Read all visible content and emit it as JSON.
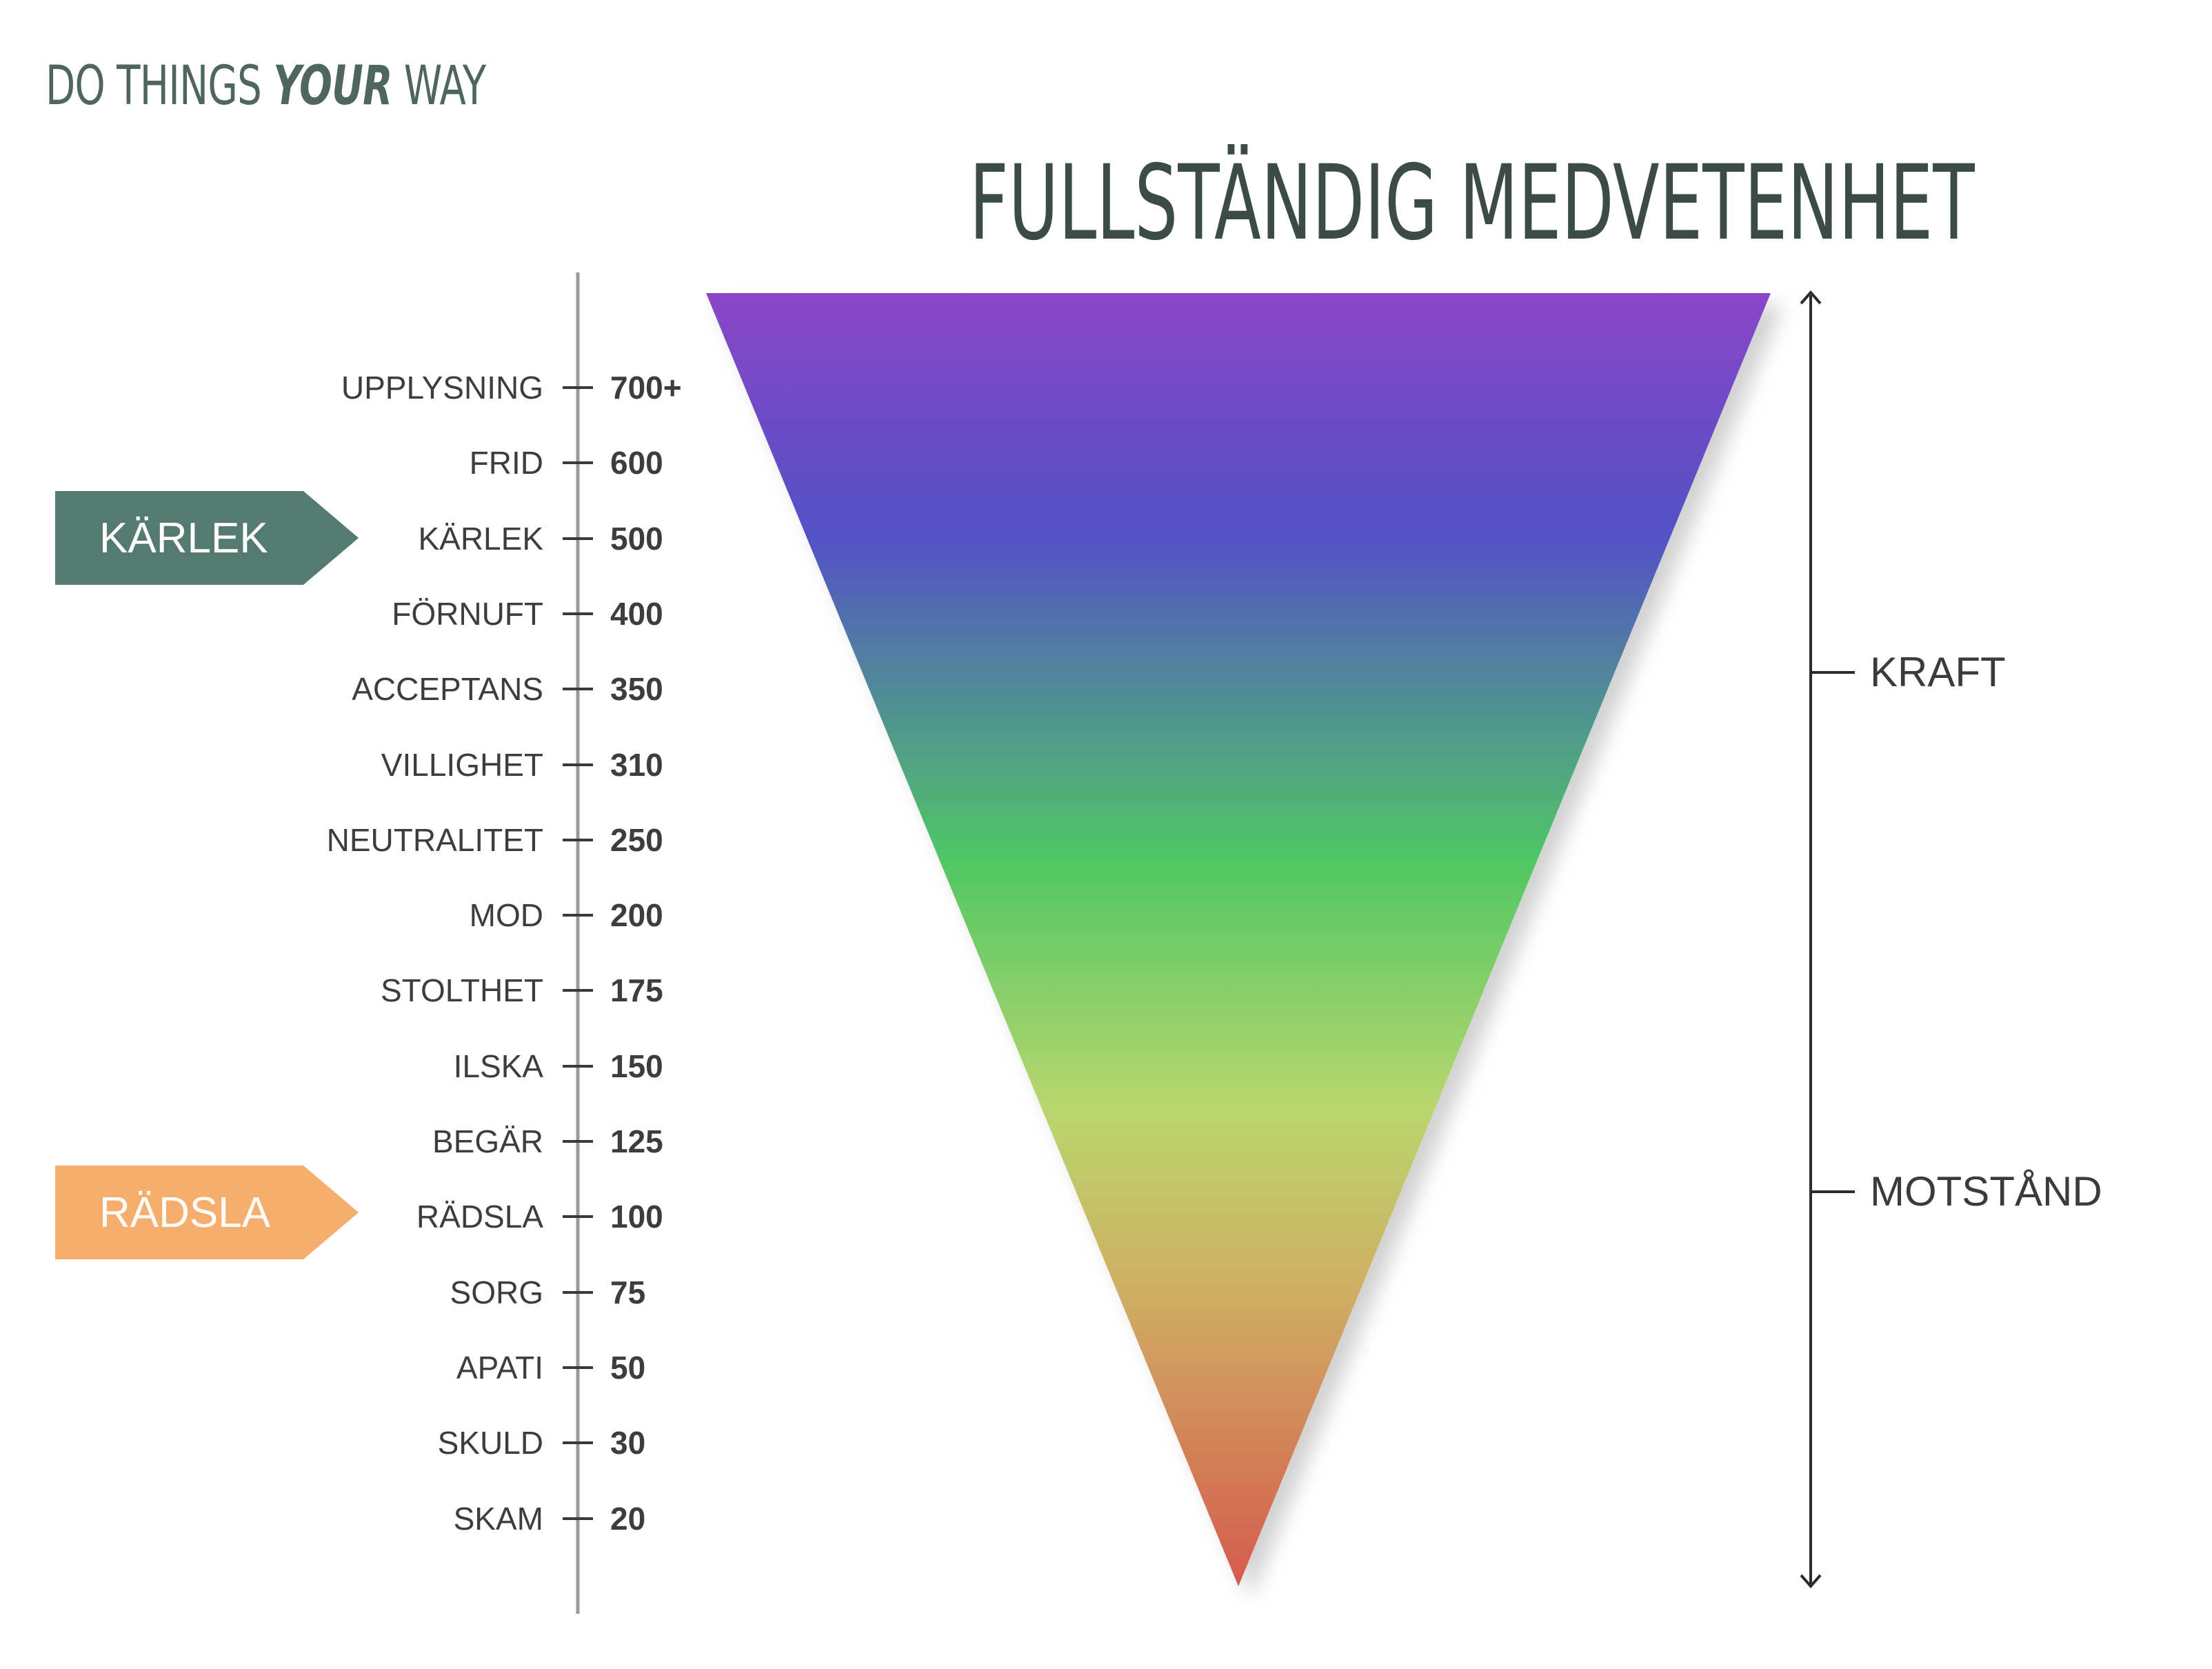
{
  "brand": {
    "pre": "DO THINGS ",
    "emphasis": "YOUR",
    "post": " WAY"
  },
  "title": "FULLSTÄNDIG MEDVETENHET",
  "levels": [
    {
      "name": "UPPLYSNING",
      "value": "700+"
    },
    {
      "name": "FRID",
      "value": "600"
    },
    {
      "name": "KÄRLEK",
      "value": "500"
    },
    {
      "name": "FÖRNUFT",
      "value": "400"
    },
    {
      "name": "ACCEPTANS",
      "value": "350"
    },
    {
      "name": "VILLIGHET",
      "value": "310"
    },
    {
      "name": "NEUTRALITET",
      "value": "250"
    },
    {
      "name": "MOD",
      "value": "200"
    },
    {
      "name": "STOLTHET",
      "value": "175"
    },
    {
      "name": "ILSKA",
      "value": "150"
    },
    {
      "name": "BEGÄR",
      "value": "125"
    },
    {
      "name": "RÄDSLA",
      "value": "100"
    },
    {
      "name": "SORG",
      "value": "75"
    },
    {
      "name": "APATI",
      "value": "50"
    },
    {
      "name": "SKULD",
      "value": "30"
    },
    {
      "name": "SKAM",
      "value": "20"
    }
  ],
  "tags": {
    "love": {
      "label": "KÄRLEK",
      "color": "#557a70"
    },
    "fear": {
      "label": "RÄDSLA",
      "color": "#f7ae6c"
    }
  },
  "side_labels": {
    "upper": "KRAFT",
    "lower": "MOTSTÅND"
  },
  "gradient_colors": [
    "#8a45c9",
    "#5252c6",
    "#518c96",
    "#50c764",
    "#b9d66e",
    "#cfaf63",
    "#d65a4e"
  ]
}
